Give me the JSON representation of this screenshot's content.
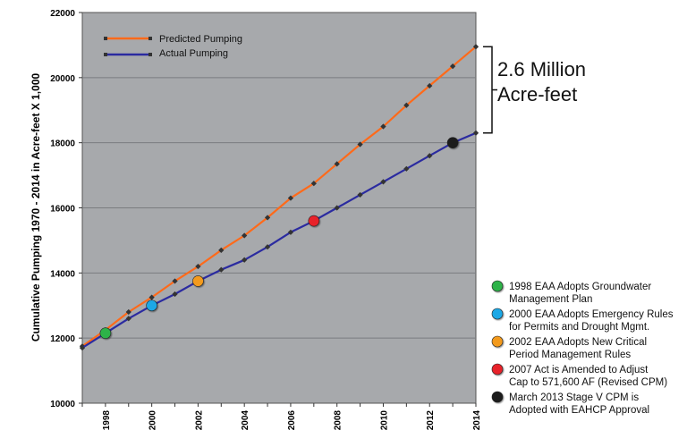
{
  "chart_data": {
    "type": "line",
    "title": "",
    "ylabel": "Cumulative Pumping 1970 - 2014 in Acre-feet X 1,000",
    "xlabel": "",
    "xlim": [
      1997,
      2014
    ],
    "ylim": [
      10000,
      22000
    ],
    "yticks": [
      10000,
      12000,
      14000,
      16000,
      18000,
      20000,
      22000
    ],
    "xticks": [
      1998,
      2000,
      2002,
      2004,
      2006,
      2008,
      2010,
      2012,
      2014
    ],
    "grid": "horizontal",
    "legend_position": "top-left",
    "x": [
      1997,
      1998,
      1999,
      2000,
      2001,
      2002,
      2003,
      2004,
      2005,
      2006,
      2007,
      2008,
      2009,
      2010,
      2011,
      2012,
      2013,
      2014
    ],
    "series": [
      {
        "name": "Predicted Pumping",
        "color": "#ff6a1a",
        "values": [
          11750,
          12250,
          12800,
          13250,
          13750,
          14200,
          14700,
          15150,
          15700,
          16300,
          16750,
          17350,
          17950,
          18500,
          19150,
          19750,
          20350,
          20950
        ]
      },
      {
        "name": "Actual Pumping",
        "color": "#2b2ba0",
        "values": [
          11700,
          12150,
          12600,
          13000,
          13350,
          13750,
          14100,
          14400,
          14800,
          15250,
          15600,
          16000,
          16400,
          16800,
          17200,
          17600,
          18000,
          18300
        ]
      }
    ],
    "annotation": {
      "line1": "2.6 Million",
      "line2": "Acre-feet"
    },
    "events": [
      {
        "year": 1998,
        "value": 12150,
        "color": "#2db34a",
        "line1": "1998 EAA Adopts Groundwater",
        "line2": "Management Plan"
      },
      {
        "year": 2000,
        "value": 13000,
        "color": "#1ea8e6",
        "line1": "2000 EAA Adopts Emergency Rules",
        "line2": "for Permits and Drought Mgmt."
      },
      {
        "year": 2002,
        "value": 13750,
        "color": "#f39a1e",
        "line1": "2002 EAA Adopts New Critical",
        "line2": "Period Management Rules"
      },
      {
        "year": 2007,
        "value": 15600,
        "color": "#e8202a",
        "line1": "2007 Act is Amended to Adjust",
        "line2": "Cap to 571,600 AF (Revised CPM)"
      },
      {
        "year": 2013,
        "value": 18000,
        "color": "#1a1a1a",
        "line1": "March 2013 Stage V CPM is",
        "line2": "Adopted with EAHCP Approval"
      }
    ]
  }
}
